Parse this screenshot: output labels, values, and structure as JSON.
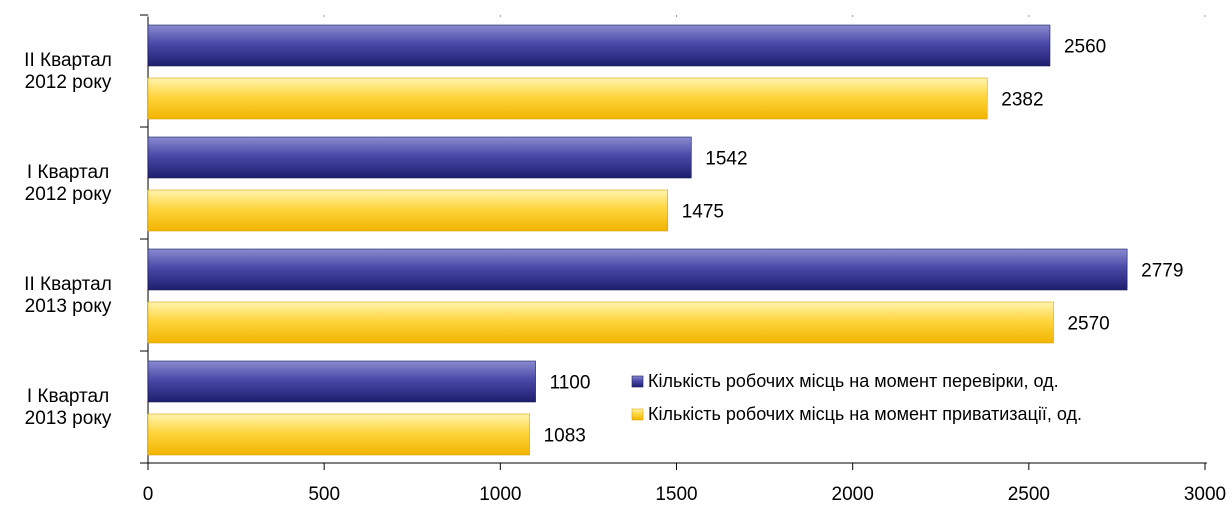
{
  "chart_data": {
    "type": "bar",
    "orientation": "horizontal",
    "categories": [
      [
        "II Квартал",
        "2012 року"
      ],
      [
        "I Квартал",
        "2012 року"
      ],
      [
        "II Квартал",
        "2013 року"
      ],
      [
        "I Квартал",
        "2013 року"
      ]
    ],
    "series": [
      {
        "name": "Кількість робочих місць на момент перевірки, од.",
        "values": [
          2560,
          1542,
          2779,
          1100
        ],
        "color": "#3b3b96"
      },
      {
        "name": "Кількість робочих місць на момент приватизації, од.",
        "values": [
          2382,
          1475,
          2570,
          1083
        ],
        "color": "#ffd23a"
      }
    ],
    "xlim": [
      0,
      3000
    ],
    "xticks": [
      0,
      500,
      1000,
      1500,
      2000,
      2500,
      3000
    ],
    "legend_position": "bottom-right",
    "grid": false,
    "title": "",
    "xlabel": "",
    "ylabel": ""
  }
}
